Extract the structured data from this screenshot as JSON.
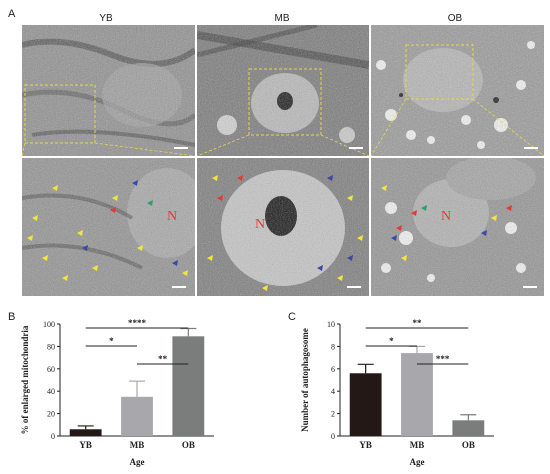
{
  "panels": {
    "a": "A",
    "b": "B",
    "c": "C"
  },
  "micrograph": {
    "columns": [
      "YB",
      "MB",
      "OB"
    ],
    "nucleus_label": "N"
  },
  "chart_data": [
    {
      "type": "bar",
      "categories": [
        "YB",
        "MB",
        "OB"
      ],
      "values": [
        6,
        35,
        89
      ],
      "errors": [
        3,
        14,
        7
      ],
      "colors": [
        "#231815",
        "#a8a8ac",
        "#7a7d7b"
      ],
      "title": "",
      "xlabel": "Age",
      "ylabel": "% of enlarged mitochondria",
      "ylim": [
        0,
        100
      ],
      "yticks": [
        0,
        20,
        40,
        60,
        80,
        100
      ],
      "grid": false,
      "significance": [
        {
          "from": 0,
          "to": 1,
          "label": "*"
        },
        {
          "from": 0,
          "to": 2,
          "label": "****"
        },
        {
          "from": 1,
          "to": 2,
          "label": "**"
        }
      ]
    },
    {
      "type": "bar",
      "categories": [
        "YB",
        "MB",
        "OB"
      ],
      "values": [
        5.6,
        7.4,
        1.4
      ],
      "errors": [
        0.8,
        0.6,
        0.5
      ],
      "colors": [
        "#231815",
        "#a8a8ac",
        "#7a7d7b"
      ],
      "title": "",
      "xlabel": "Age",
      "ylabel": "Number of autophagosome",
      "ylim": [
        0,
        10
      ],
      "yticks": [
        0,
        2,
        4,
        6,
        8,
        10
      ],
      "grid": false,
      "significance": [
        {
          "from": 0,
          "to": 1,
          "label": "*"
        },
        {
          "from": 0,
          "to": 2,
          "label": "**"
        },
        {
          "from": 1,
          "to": 2,
          "label": "***"
        }
      ]
    }
  ]
}
